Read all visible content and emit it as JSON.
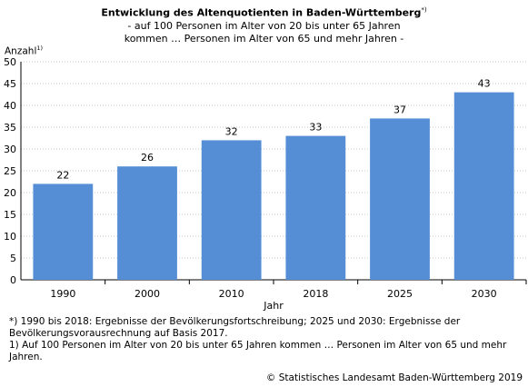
{
  "chart_data": {
    "type": "bar",
    "title": "Entwicklung des Altenquotienten in Baden-Württemberg",
    "title_marker": "*)",
    "subtitle": "- auf 100 Personen im Alter von 20 bis unter 65 Jahren kommen … Personen im Alter von 65 und mehr Jahren -",
    "ylabel": "Anzahl",
    "ylabel_marker": "1)",
    "xlabel": "Jahr",
    "categories": [
      "1990",
      "2000",
      "2010",
      "2018",
      "2025",
      "2030"
    ],
    "values": [
      22,
      26,
      32,
      33,
      37,
      43
    ],
    "ylim": [
      0,
      50
    ],
    "yticks": [
      0,
      5,
      10,
      15,
      20,
      25,
      30,
      35,
      40,
      45,
      50
    ],
    "grid": true,
    "bar_color": "#558ED5"
  },
  "footnotes": [
    "*) 1990 bis 2018: Ergebnisse der Bevölkerungsfortschreibung; 2025 und 2030: Ergebnisse der Bevölkerungsvorausrechnung auf Basis 2017.",
    "1) Auf 100 Personen im Alter von 20 bis unter 65 Jahren kommen … Personen im Alter von 65 und mehr Jahren."
  ],
  "source": "© Statistisches Landesamt Baden-Württemberg 2019"
}
